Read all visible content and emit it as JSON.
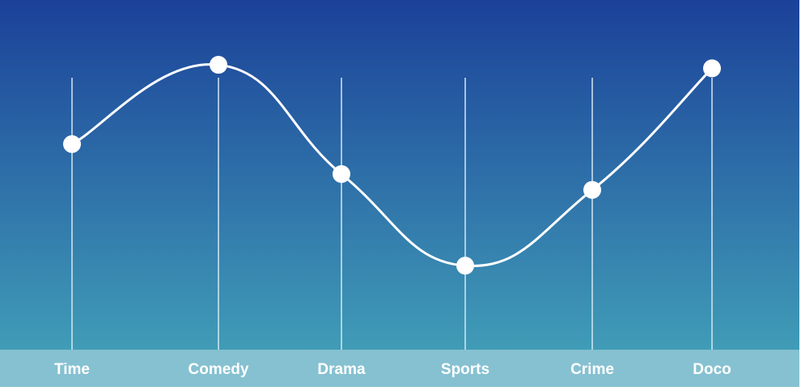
{
  "chart_data": {
    "type": "line",
    "categories": [
      "Time",
      "Comedy",
      "Drama",
      "Sports",
      "Crime",
      "Doco"
    ],
    "values": [
      0.52,
      0.97,
      0.35,
      -0.17,
      0.26,
      0.95
    ],
    "ylim": [
      -0.5,
      1.2
    ],
    "grid": true,
    "smooth": true,
    "title": "",
    "xlabel": "",
    "ylabel": "",
    "colors": {
      "background_top": "#1b4199",
      "background_bottom": "#409cb7",
      "axis_band": "#86c1d1",
      "line": "#ffffff",
      "marker": "#ffffff",
      "gridline": "#d6e7f2"
    }
  }
}
